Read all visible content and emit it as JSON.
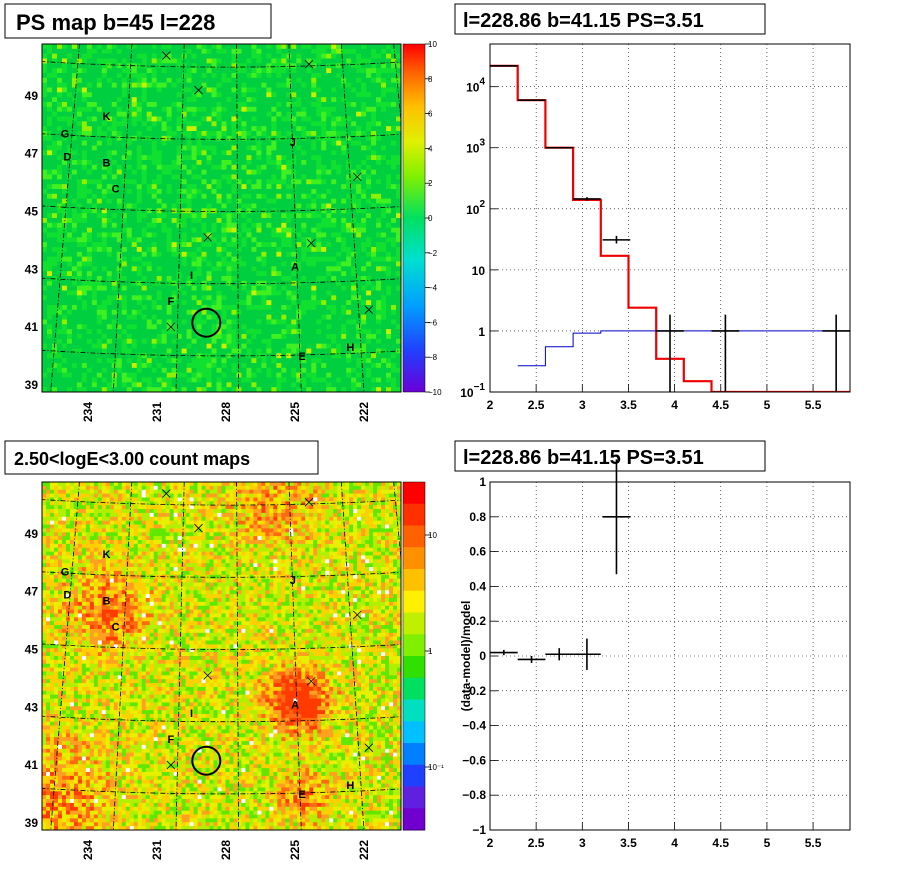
{
  "panels": {
    "ps_map": {
      "title": "PS map b=45 l=228",
      "colorbar_ticks": [
        "10",
        "8",
        "6",
        "4",
        "2",
        "0",
        "−2",
        "−4",
        "−6",
        "−8",
        "−10"
      ],
      "y_ticks": [
        "49",
        "47",
        "45",
        "43",
        "41",
        "39"
      ],
      "x_ticks": [
        "234",
        "231",
        "228",
        "225",
        "222"
      ]
    },
    "count_map": {
      "title": "2.50<logE<3.00 count maps",
      "colorbar_ticks": [
        "10",
        "1",
        "10⁻¹"
      ],
      "y_ticks": [
        "49",
        "47",
        "45",
        "43",
        "41",
        "39"
      ],
      "x_ticks": [
        "234",
        "231",
        "228",
        "225",
        "222"
      ]
    },
    "spectrum": {
      "title": "l=228.86 b=41.15 PS=3.51"
    },
    "residual": {
      "title": "l=228.86 b=41.15 PS=3.51",
      "ylabel": "(data-model)/model"
    }
  },
  "source_labels": [
    {
      "id": "K",
      "l": 233.2,
      "b": 48.3
    },
    {
      "id": "G",
      "l": 235.0,
      "b": 47.7
    },
    {
      "id": "D",
      "l": 234.9,
      "b": 46.9
    },
    {
      "id": "B",
      "l": 233.2,
      "b": 46.7
    },
    {
      "id": "J",
      "l": 225.1,
      "b": 47.4
    },
    {
      "id": "C",
      "l": 232.8,
      "b": 45.8
    },
    {
      "id": "I",
      "l": 229.5,
      "b": 42.8
    },
    {
      "id": "A",
      "l": 225.0,
      "b": 43.1
    },
    {
      "id": "F",
      "l": 230.4,
      "b": 41.9
    },
    {
      "id": "E",
      "l": 224.7,
      "b": 40.0
    },
    {
      "id": "H",
      "l": 222.6,
      "b": 40.3
    }
  ],
  "cross_markers": [
    {
      "l": 229.2,
      "b": 49.2
    },
    {
      "l": 230.6,
      "b": 50.4
    },
    {
      "l": 224.4,
      "b": 50.1
    },
    {
      "l": 228.8,
      "b": 44.1
    },
    {
      "l": 224.3,
      "b": 43.9
    },
    {
      "l": 222.3,
      "b": 46.2
    },
    {
      "l": 221.8,
      "b": 41.6
    },
    {
      "l": 230.4,
      "b": 41.0
    }
  ],
  "target_circle": {
    "l": 228.86,
    "b": 41.15
  },
  "chart_data": [
    {
      "type": "heatmap",
      "title": "PS map b=45 l=228",
      "xlim": [
        236.0,
        220.4
      ],
      "ylim": [
        38.75,
        50.8
      ],
      "zlim": [
        -10,
        10
      ],
      "x_ticks": [
        234,
        231,
        228,
        225,
        222
      ],
      "y_ticks": [
        49,
        47,
        45,
        43,
        41,
        39
      ]
    },
    {
      "type": "heatmap",
      "title": "2.50<logE<3.00 count maps",
      "xlim": [
        236.0,
        220.4
      ],
      "ylim": [
        38.75,
        50.8
      ],
      "zscale": "log",
      "x_ticks": [
        234,
        231,
        228,
        225,
        222
      ],
      "y_ticks": [
        49,
        47,
        45,
        43,
        41,
        39
      ]
    },
    {
      "type": "line",
      "title": "l=228.86 b=41.15 PS=3.51",
      "xlim": [
        2.0,
        5.9
      ],
      "ylim": [
        0.1,
        50000
      ],
      "yscale": "log",
      "grid": true,
      "x_ticks": [
        "2",
        "2.5",
        "3",
        "3.5",
        "4",
        "4.5",
        "5",
        "5.5"
      ],
      "y_ticks": [
        {
          "v": 10000,
          "t": "10",
          "sup": "4"
        },
        {
          "v": 1000,
          "t": "10",
          "sup": "3"
        },
        {
          "v": 100,
          "t": "10",
          "sup": "2"
        },
        {
          "v": 10,
          "t": "10",
          "sup": ""
        },
        {
          "v": 1,
          "t": "1",
          "sup": ""
        },
        {
          "v": 0.1,
          "t": "10",
          "sup": "−1"
        }
      ],
      "series": [
        {
          "color": "#ee0000",
          "style": "step",
          "edges": [
            2.0,
            2.3,
            2.6,
            2.9,
            3.2,
            3.5,
            3.8,
            4.1,
            4.4,
            5.9
          ],
          "values": [
            22000,
            6000,
            1000,
            140,
            17,
            2.4,
            0.35,
            0.15,
            0.1
          ]
        },
        {
          "color": "#0000cc",
          "style": "step",
          "edges": [
            2.3,
            2.6,
            2.9,
            3.2,
            3.5,
            3.8,
            4.1,
            4.4,
            5.9
          ],
          "values": [
            0.27,
            0.55,
            0.92,
            1.0,
            1.0,
            1.0,
            1.0,
            1.0
          ]
        },
        {
          "color": "#000000",
          "style": "errorbar",
          "points": [
            {
              "x": 2.15,
              "y": 22000,
              "xerr": 0.15,
              "ylo": 21800,
              "yhi": 22200
            },
            {
              "x": 2.45,
              "y": 6000,
              "xerr": 0.15,
              "ylo": 5930,
              "yhi": 6070
            },
            {
              "x": 2.75,
              "y": 1000,
              "xerr": 0.15,
              "ylo": 975,
              "yhi": 1025
            },
            {
              "x": 3.05,
              "y": 145,
              "xerr": 0.15,
              "ylo": 135,
              "yhi": 155
            },
            {
              "x": 3.37,
              "y": 31,
              "xerr": 0.15,
              "ylo": 27,
              "yhi": 36
            },
            {
              "x": 3.95,
              "y": 1.0,
              "xerr": 0.15,
              "ylo": 0.1,
              "yhi": 1.85
            },
            {
              "x": 4.55,
              "y": 1.0,
              "xerr": 0.15,
              "ylo": 0.1,
              "yhi": 1.85
            },
            {
              "x": 5.75,
              "y": 1.0,
              "xerr": 0.15,
              "ylo": 0.1,
              "yhi": 1.85
            }
          ]
        }
      ]
    },
    {
      "type": "scatter",
      "title": "l=228.86 b=41.15 PS=3.51",
      "ylabel": "(data-model)/model",
      "xlim": [
        2.0,
        5.9
      ],
      "ylim": [
        -1.0,
        1.0
      ],
      "grid": true,
      "x_ticks": [
        "2",
        "2.5",
        "3",
        "3.5",
        "4",
        "4.5",
        "5",
        "5.5"
      ],
      "y_ticks": [
        "1",
        "0.8",
        "0.6",
        "0.4",
        "0.2",
        "0",
        "−0.2",
        "−0.4",
        "−0.6",
        "−0.8",
        "−1"
      ],
      "points": [
        {
          "x": 2.15,
          "y": 0.02,
          "xerr": 0.15,
          "yerr": 0.015
        },
        {
          "x": 2.45,
          "y": -0.02,
          "xerr": 0.15,
          "yerr": 0.02
        },
        {
          "x": 2.75,
          "y": 0.01,
          "xerr": 0.15,
          "yerr": 0.035
        },
        {
          "x": 3.05,
          "y": 0.01,
          "xerr": 0.15,
          "yerr": 0.09
        },
        {
          "x": 3.37,
          "y": 0.8,
          "xerr": 0.15,
          "yerr": 0.33
        }
      ]
    }
  ]
}
